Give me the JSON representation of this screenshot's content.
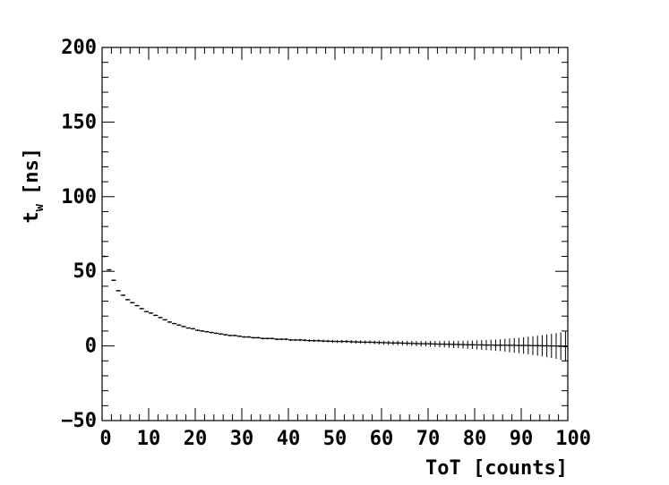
{
  "chart_data": {
    "type": "scatter",
    "title": "",
    "xlabel": "ToT [counts]",
    "ylabel": {
      "main": "t",
      "sub": "w",
      "unit": "[ns]"
    },
    "xlim": [
      0,
      100
    ],
    "ylim": [
      -50,
      200
    ],
    "grid": false,
    "legend": "none",
    "x_ticks": [
      "0",
      "10",
      "20",
      "30",
      "40",
      "50",
      "60",
      "70",
      "80",
      "90",
      "100"
    ],
    "y_ticks": [
      "−50",
      "0",
      "50",
      "100",
      "150",
      "200"
    ],
    "series": [
      {
        "marker": "horizontal-bin-with-error-bar",
        "color": "#000000",
        "bin_width": 1,
        "x": [
          0.5,
          1.5,
          2.5,
          3.5,
          4.5,
          5.5,
          6.5,
          7.5,
          8.5,
          9.5,
          10.5,
          11.5,
          12.5,
          13.5,
          14.5,
          15.5,
          16.5,
          17.5,
          18.5,
          19.5,
          20.5,
          21.5,
          22.5,
          23.5,
          24.5,
          25.5,
          26.5,
          27.5,
          28.5,
          29.5,
          30.5,
          31.5,
          32.5,
          33.5,
          34.5,
          35.5,
          36.5,
          37.5,
          38.5,
          39.5,
          40.5,
          41.5,
          42.5,
          43.5,
          44.5,
          45.5,
          46.5,
          47.5,
          48.5,
          49.5,
          50.5,
          51.5,
          52.5,
          53.5,
          54.5,
          55.5,
          56.5,
          57.5,
          58.5,
          59.5,
          60.5,
          61.5,
          62.5,
          63.5,
          64.5,
          65.5,
          66.5,
          67.5,
          68.5,
          69.5,
          70.5,
          71.5,
          72.5,
          73.5,
          74.5,
          75.5,
          76.5,
          77.5,
          78.5,
          79.5,
          80.5,
          81.5,
          82.5,
          83.5,
          84.5,
          85.5,
          86.5,
          87.5,
          88.5,
          89.5,
          90.5,
          91.5,
          92.5,
          93.5,
          94.5,
          95.5,
          96.5,
          97.5,
          98.5,
          99.5
        ],
        "y": [
          60,
          51,
          44,
          37,
          34,
          31,
          29,
          27,
          25,
          23,
          22,
          20.5,
          19,
          17.5,
          16,
          15,
          14,
          13,
          12,
          11.5,
          10.5,
          10,
          9.5,
          9,
          8.5,
          8,
          7.5,
          7,
          7,
          6.5,
          6,
          6,
          5.5,
          5.5,
          5,
          5,
          5,
          4.5,
          4.5,
          4.5,
          4,
          4,
          4,
          3.8,
          3.6,
          3.5,
          3.5,
          3.3,
          3.2,
          3.1,
          3,
          3,
          3,
          2.8,
          2.7,
          2.6,
          2.5,
          2.5,
          2.4,
          2.3,
          2.2,
          2.1,
          2,
          2,
          1.9,
          1.8,
          1.7,
          1.6,
          1.5,
          1.5,
          1.4,
          1.3,
          1.2,
          1.2,
          1.1,
          1,
          1,
          0.9,
          0.8,
          0.8,
          0.7,
          0.7,
          0.6,
          0.6,
          0.5,
          0.5,
          0.5,
          0.4,
          0.4,
          0.3,
          0.3,
          0.3,
          0.2,
          0.2,
          0.1,
          0.1,
          0,
          0,
          -0.2,
          -0.4
        ],
        "yerr": [
          0.5,
          0.5,
          0.5,
          0.5,
          0.5,
          0.5,
          0.5,
          0.5,
          0.5,
          0.5,
          0.5,
          0.5,
          0.5,
          0.5,
          0.5,
          0.5,
          0.5,
          0.5,
          0.5,
          0.5,
          0.5,
          0.5,
          0.5,
          0.5,
          0.5,
          0.5,
          0.5,
          0.5,
          0.5,
          0.5,
          0.6,
          0.6,
          0.6,
          0.6,
          0.6,
          0.6,
          0.6,
          0.7,
          0.7,
          0.7,
          0.7,
          0.7,
          0.8,
          0.8,
          0.8,
          0.8,
          0.9,
          0.9,
          0.9,
          1,
          1,
          1,
          1,
          1.1,
          1.1,
          1.1,
          1.2,
          1.2,
          1.2,
          1.3,
          1.3,
          1.4,
          1.4,
          1.5,
          1.5,
          1.6,
          1.6,
          1.7,
          1.8,
          1.8,
          1.9,
          2,
          2.1,
          2.2,
          2.3,
          2.4,
          2.5,
          2.6,
          2.7,
          2.8,
          3,
          3.2,
          3.4,
          3.6,
          3.8,
          4,
          4.3,
          4.6,
          4.9,
          5.2,
          5.5,
          5.9,
          6.3,
          6.7,
          7.1,
          7.6,
          8.1,
          8.6,
          9.2,
          10
        ]
      }
    ]
  }
}
